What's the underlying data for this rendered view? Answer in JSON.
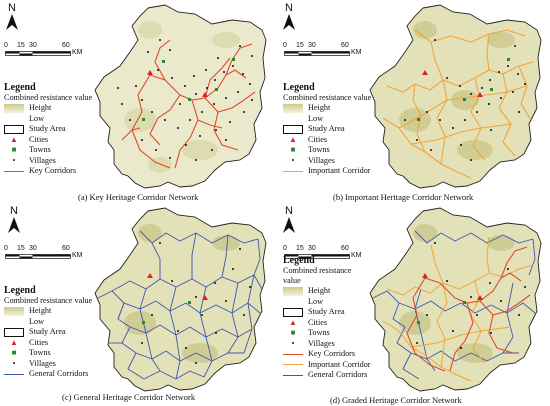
{
  "north_label": "N",
  "scale": {
    "ticks": [
      "0",
      "15",
      "30",
      "60"
    ],
    "unit": "KM"
  },
  "colors": {
    "key": "#e24a2a",
    "important": "#f0a63a",
    "general": "#3d57b0",
    "city": "#d8232a",
    "town": "#2a8a2a",
    "village": "#111111",
    "terrain_high": "#cdcb8a",
    "terrain_low": "#f2f1dc"
  },
  "legend": {
    "title": "Legend",
    "resistance": "Combined resistance value",
    "height": "Height",
    "low": "Low",
    "study_area": "Study Area",
    "cities": "Cities",
    "towns": "Towns",
    "villages": "Villages",
    "key": "Key Corridors",
    "important": "Important Corridor",
    "general": "General Corridors"
  },
  "panels": {
    "a": {
      "caption": "(a) Key Heritage Corridor Network"
    },
    "b": {
      "caption": "(b) Important Heritage Corridor Network"
    },
    "c": {
      "caption": "(c) General Heritage Corridor Network"
    },
    "d": {
      "caption": "(d) Graded Heritage Corridor Network",
      "resistance_line1": "Combined resistance",
      "resistance_line2": "value"
    }
  }
}
